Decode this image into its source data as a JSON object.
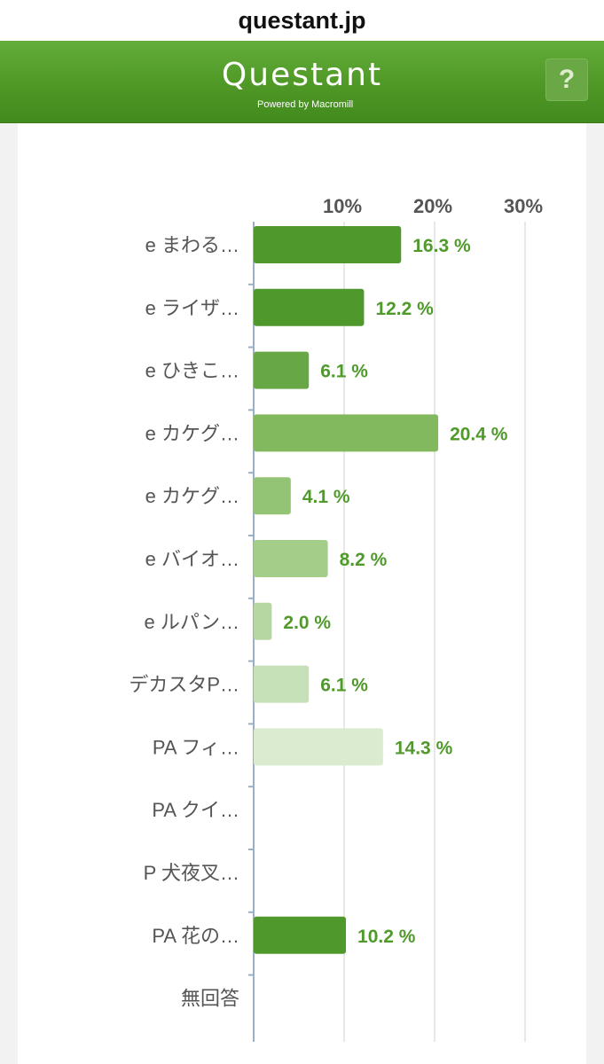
{
  "browser": {
    "url": "questant.jp"
  },
  "header": {
    "logo": "Questant",
    "tagline": "Powered by Macromill",
    "help": "?"
  },
  "chart_data": {
    "type": "bar",
    "orientation": "horizontal",
    "categories": [
      "e まわる…",
      "e ライザ…",
      "e ひきこ…",
      "e カケグ…",
      "e カケグ…",
      "e バイオ…",
      "e ルパン…",
      "デカスタP…",
      "PA フィ…",
      "PA クイ…",
      "P 犬夜叉…",
      "PA 花の…",
      "無回答"
    ],
    "values": [
      16.3,
      12.2,
      6.1,
      20.4,
      4.1,
      8.2,
      2.0,
      6.1,
      14.3,
      0,
      0,
      10.2,
      0
    ],
    "value_labels": [
      "16.3 %",
      "12.2 %",
      "6.1 %",
      "20.4 %",
      "4.1 %",
      "8.2 %",
      "2.0 %",
      "6.1 %",
      "14.3 %",
      "",
      "",
      "10.2 %",
      ""
    ],
    "bar_colors": [
      "#4f982b",
      "#4f982b",
      "#68a745",
      "#82b95e",
      "#93c374",
      "#a5cd8a",
      "#b6d7a1",
      "#c6e0b8",
      "#daebd0",
      "#4f982b",
      "#4f982b",
      "#4f982b",
      "#4f982b"
    ],
    "ticks": [
      {
        "value": 10,
        "label": "10%"
      },
      {
        "value": 20,
        "label": "20%"
      },
      {
        "value": 30,
        "label": "30%"
      }
    ],
    "xlim": [
      0,
      30
    ],
    "grid": true,
    "value_label_color": "#4f9a2b"
  }
}
